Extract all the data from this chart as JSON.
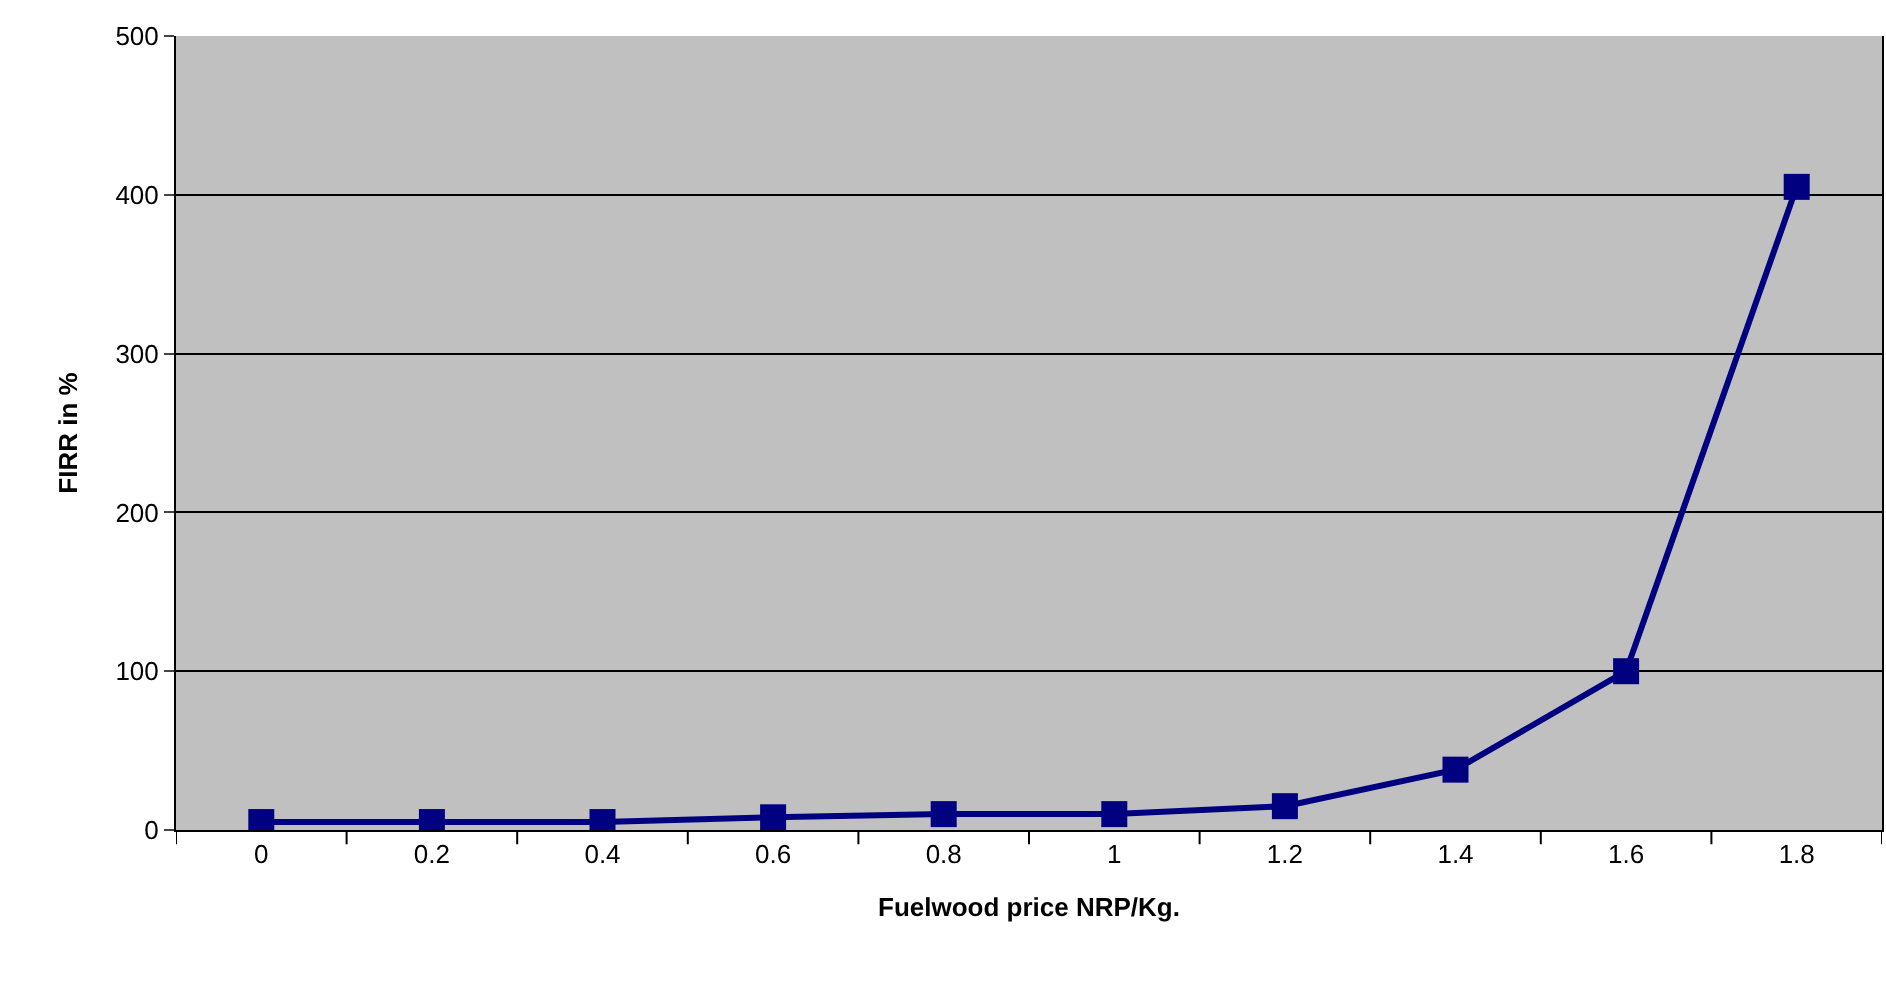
{
  "chart_data": {
    "type": "line",
    "xlabel": "Fuelwood price NRP/Kg.",
    "ylabel": "FIRR in %",
    "categories": [
      "0",
      "0.2",
      "0.4",
      "0.6",
      "0.8",
      "1",
      "1.2",
      "1.4",
      "1.6",
      "1.8"
    ],
    "series": [
      {
        "color": "#000080",
        "values": [
          5,
          5,
          5,
          8,
          10,
          10,
          15,
          38,
          100,
          405
        ]
      }
    ],
    "ylim": [
      0,
      500
    ],
    "yticks": [
      0,
      100,
      200,
      300,
      400,
      500
    ],
    "grid": "y",
    "marker": "square",
    "line_style": "solid"
  }
}
